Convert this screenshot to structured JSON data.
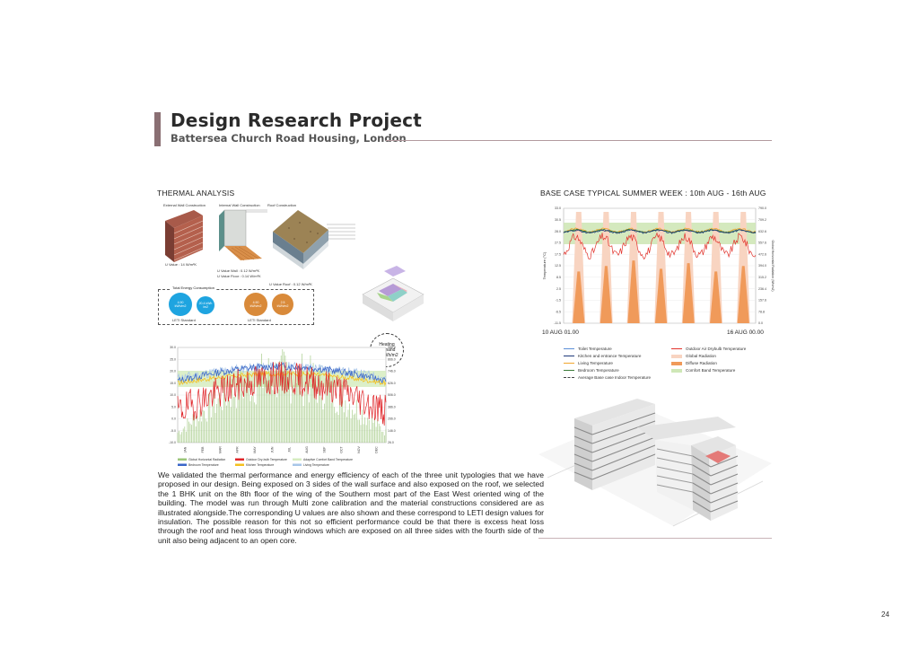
{
  "header": {
    "title": "Design Research Project",
    "subtitle": "Battersea Church Road Housing, London"
  },
  "thermal": {
    "heading": "THERMAL ANALYSIS",
    "external_wall_label": "External Wall Construction",
    "internal_wall_label": "Internal Wall Construction",
    "roof_label": "Roof Construction",
    "u_value_ext": "U Value : 14 W/m²K",
    "u_value_int_wall": "U Value Wall : 0.12 W/m²K",
    "u_value_int_floor": "U Value Floor : 0.14 W/m²K",
    "u_value_roof": "U Value Roof : 0.12 W/m²K",
    "energy_box_label": "Total Energy Consumption",
    "circles": [
      {
        "line1": "4.90",
        "line2": "kWh/m2",
        "color": "#1ea4e0"
      },
      {
        "line1": "20.4 kWh",
        "line2": "/m2",
        "color": "#1ea4e0"
      },
      {
        "line1": "4.90",
        "line2": "kWh/m2",
        "color": "#d98a3a"
      },
      {
        "line1": "2.5",
        "line2": "kWh/m2",
        "color": "#d98a3a"
      }
    ],
    "leti_left": "LETI Standard",
    "leti_right": "LETI Standard",
    "heating_demand_l1": "Heating",
    "heating_demand_l2": "Demand",
    "heating_demand_l3": "28 kWh/m2"
  },
  "annual_chart": {
    "y_left": [
      "30.0",
      "25.0",
      "20.0",
      "15.0",
      "10.0",
      "5.0",
      "0.0",
      "-5.0",
      "-10.0"
    ],
    "y_right": [
      "986.0",
      "866.0",
      "746.0",
      "626.0",
      "506.0",
      "386.0",
      "266.0",
      "146.0",
      "26.0"
    ],
    "months": [
      "JAN",
      "FEB",
      "MAR",
      "APR",
      "MAY",
      "JUN",
      "JUL",
      "AUG",
      "SEP",
      "OCT",
      "NOV",
      "DEC"
    ],
    "legend": [
      {
        "label": "Global Horizontal Radiation",
        "color": "#9bc67a"
      },
      {
        "label": "Outdoor Dry-bulb Temperature",
        "color": "#e0262a"
      },
      {
        "label": "Adaptive Comfort Band Temperature",
        "color": "#d6ecc0"
      },
      {
        "label": "Bedroom Temperature",
        "color": "#3a66c8"
      },
      {
        "label": "Kitchen Temperature",
        "color": "#f4c020"
      },
      {
        "label": "Living Temperature",
        "color": "#a8c6e8"
      }
    ]
  },
  "summer": {
    "heading": "BASE CASE TYPICAL SUMMER WEEK : 10th AUG - 16th AUG",
    "y_left": [
      "33.0",
      "30.5",
      "28.0",
      "27.5",
      "17.5",
      "12.5",
      "8.5",
      "2.5",
      "-1.5",
      "-6.5",
      "-11.5"
    ],
    "y_right": [
      "790.0",
      "709.2",
      "632.6",
      "557.6",
      "472.6",
      "394.0",
      "315.2",
      "236.4",
      "157.6",
      "78.8",
      "0.0"
    ],
    "y_axis_label": "Temperature (°C)",
    "y_axis_label_right": "Global Horizontal Radiation (Wh/m2)",
    "start_label": "10 AUG 01.00",
    "end_label": "16 AUG 00.00",
    "legend": [
      {
        "label": "Toilet Temperature",
        "color": "#5b8fd8",
        "type": "line"
      },
      {
        "label": "Kitchen and entrance Temperature",
        "color": "#1f3a7a",
        "type": "line"
      },
      {
        "label": "Living Temperature",
        "color": "#f1a62d",
        "type": "line"
      },
      {
        "label": "Bedroom Temperature",
        "color": "#3d7c3a",
        "type": "line"
      },
      {
        "label": "Average Base case Indoor Temperature",
        "color": "#444444",
        "type": "dash"
      },
      {
        "label": "Outdoor Air Drybulb Temperature",
        "color": "#e2332c",
        "type": "line"
      },
      {
        "label": "Global Radiation",
        "color": "#f8d4c1",
        "type": "swatch"
      },
      {
        "label": "Diffuse Radiation",
        "color": "#f09a5a",
        "type": "swatch"
      },
      {
        "label": "Comfort Band Temperature",
        "color": "#cfe7b7",
        "type": "swatch"
      }
    ]
  },
  "body": {
    "paragraph": "We validated the thermal performance and energy efficiency of each of the three unit typologies that we have proposed in our design. Being exposed on 3 sides of the wall surface and also exposed on the roof, we selected the 1 BHK unit on the 8th floor of the wing of the Southern most part of the East West oriented wing of the building. The model was run through Multi zone calibration and the material constructions considered are as illustrated alongside.The corresponding U values are also shown and these correspond to LETI design values for insulation. The possible reason for this not so efficient performance could be that there is excess heat loss through the roof and heat loss through windows which are exposed on all three sides with the fourth side of the unit also being adjacent to an open core."
  },
  "page": {
    "number": "24"
  }
}
